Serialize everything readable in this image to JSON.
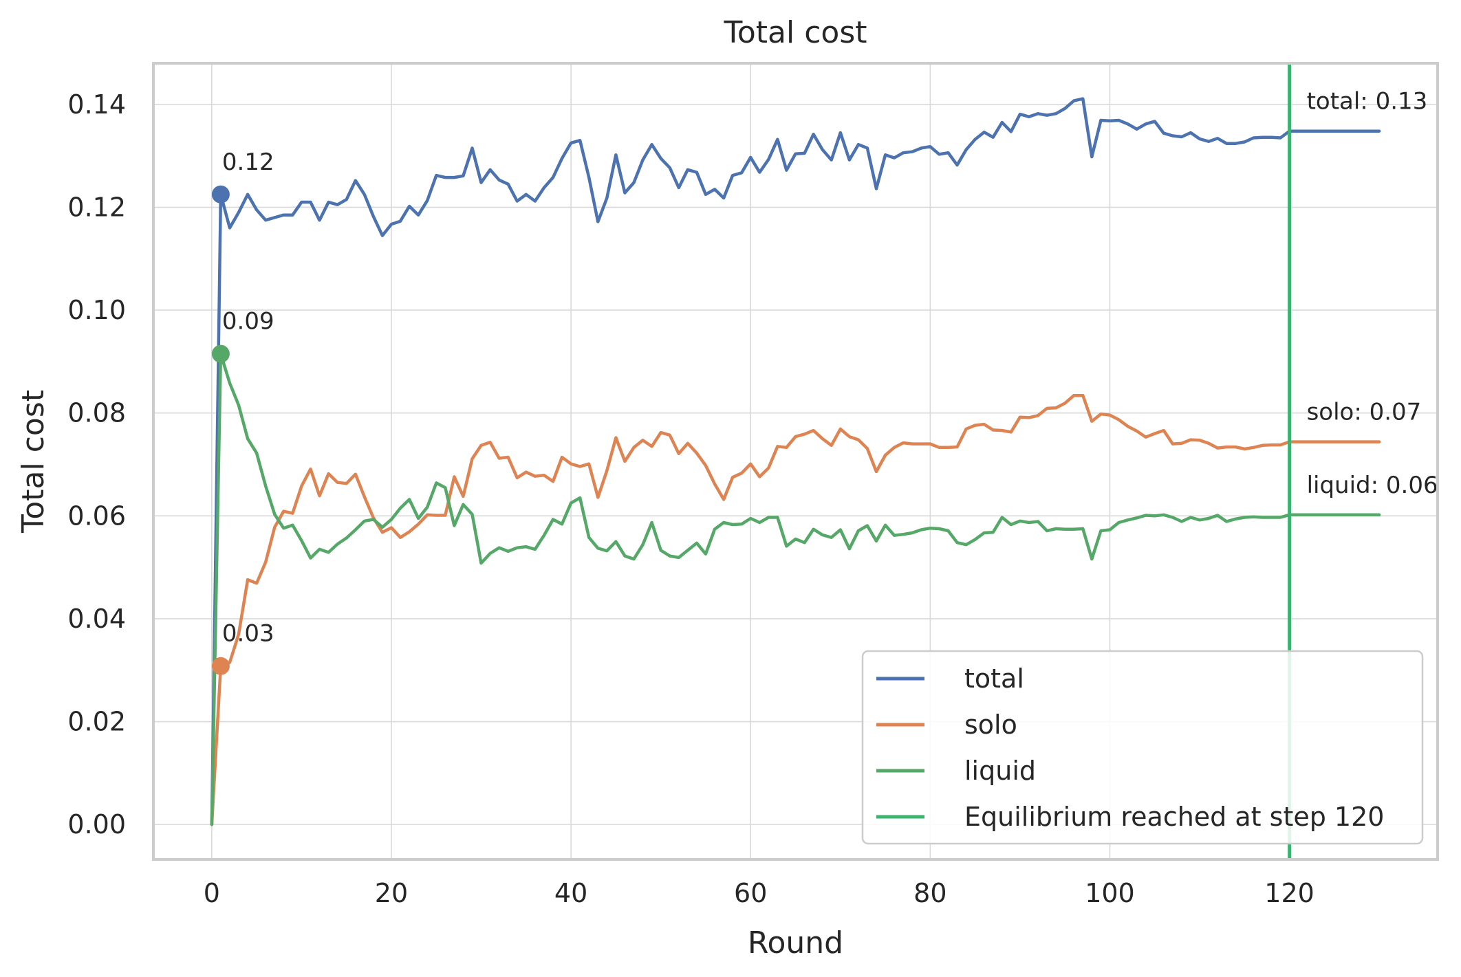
{
  "chart_data": {
    "type": "line",
    "title": "Total cost",
    "xlabel": "Round",
    "ylabel": "Total cost",
    "xlim": [
      -6.5,
      136.5
    ],
    "ylim": [
      -0.0068,
      0.148
    ],
    "xticks": [
      0,
      20,
      40,
      60,
      80,
      100,
      120
    ],
    "xtick_labels": [
      "0",
      "20",
      "40",
      "60",
      "80",
      "100",
      "120"
    ],
    "yticks": [
      0.0,
      0.02,
      0.04,
      0.06,
      0.08,
      0.1,
      0.12,
      0.14
    ],
    "ytick_labels": [
      "0.00",
      "0.02",
      "0.04",
      "0.06",
      "0.08",
      "0.10",
      "0.12",
      "0.14"
    ],
    "grid": true,
    "legend_position": "bottom-right",
    "x": [
      0,
      1,
      2,
      3,
      4,
      5,
      6,
      7,
      8,
      9,
      10,
      11,
      12,
      13,
      14,
      15,
      16,
      17,
      18,
      19,
      20,
      21,
      22,
      23,
      24,
      25,
      26,
      27,
      28,
      29,
      30,
      31,
      32,
      33,
      34,
      35,
      36,
      37,
      38,
      39,
      40,
      41,
      42,
      43,
      44,
      45,
      46,
      47,
      48,
      49,
      50,
      51,
      52,
      53,
      54,
      55,
      56,
      57,
      58,
      59,
      60,
      61,
      62,
      63,
      64,
      65,
      66,
      67,
      68,
      69,
      70,
      71,
      72,
      73,
      74,
      75,
      76,
      77,
      78,
      79,
      80,
      81,
      82,
      83,
      84,
      85,
      86,
      87,
      88,
      89,
      90,
      91,
      92,
      93,
      94,
      95,
      96,
      97,
      98,
      99,
      100,
      101,
      102,
      103,
      104,
      105,
      106,
      107,
      108,
      109,
      110,
      111,
      112,
      113,
      114,
      115,
      116,
      117,
      118,
      119,
      120,
      121,
      122,
      123,
      124,
      125,
      126,
      127,
      128,
      129,
      130
    ],
    "series": [
      {
        "name": "total",
        "color": "#4c72b0",
        "values": [
          0.0,
          0.1225,
          0.116,
          0.119,
          0.1225,
          0.1195,
          0.1175,
          0.118,
          0.1185,
          0.1185,
          0.121,
          0.121,
          0.1175,
          0.121,
          0.1205,
          0.1215,
          0.1252,
          0.1225,
          0.1182,
          0.1145,
          0.1167,
          0.1173,
          0.1202,
          0.1185,
          0.1213,
          0.1262,
          0.1258,
          0.1258,
          0.1261,
          0.1315,
          0.1248,
          0.1273,
          0.1253,
          0.1245,
          0.1212,
          0.1225,
          0.1212,
          0.1238,
          0.1258,
          0.1295,
          0.1325,
          0.133,
          0.1258,
          0.1172,
          0.1218,
          0.1302,
          0.1228,
          0.1248,
          0.1292,
          0.1322,
          0.1295,
          0.1277,
          0.1238,
          0.1273,
          0.1268,
          0.1225,
          0.1235,
          0.1218,
          0.1262,
          0.1267,
          0.1297,
          0.1268,
          0.1293,
          0.1332,
          0.1272,
          0.1304,
          0.1305,
          0.1342,
          0.1312,
          0.1292,
          0.1345,
          0.1292,
          0.1322,
          0.1315,
          0.1236,
          0.1302,
          0.1296,
          0.1306,
          0.1308,
          0.1315,
          0.1318,
          0.1303,
          0.1306,
          0.1282,
          0.1312,
          0.1332,
          0.1346,
          0.1336,
          0.1365,
          0.1347,
          0.1381,
          0.1376,
          0.1382,
          0.1379,
          0.1382,
          0.1392,
          0.1407,
          0.1411,
          0.1298,
          0.1369,
          0.1368,
          0.1369,
          0.1362,
          0.1352,
          0.1362,
          0.1367,
          0.1344,
          0.1339,
          0.1337,
          0.1345,
          0.1333,
          0.1328,
          0.1334,
          0.1324,
          0.1324,
          0.1327,
          0.1335,
          0.1336,
          0.1336,
          0.1335,
          0.1348,
          0.1348,
          0.1348,
          0.1348,
          0.1348,
          0.1348,
          0.1348,
          0.1348,
          0.1348,
          0.1348,
          0.1348
        ]
      },
      {
        "name": "solo",
        "color": "#dd8452",
        "values": [
          0.0,
          0.0308,
          0.0315,
          0.037,
          0.0476,
          0.0469,
          0.051,
          0.0578,
          0.0609,
          0.0605,
          0.0658,
          0.0691,
          0.0639,
          0.0682,
          0.0665,
          0.0663,
          0.0681,
          0.0637,
          0.0596,
          0.0568,
          0.0577,
          0.0558,
          0.0569,
          0.0584,
          0.0602,
          0.0601,
          0.0601,
          0.0676,
          0.0638,
          0.0711,
          0.0737,
          0.0743,
          0.0712,
          0.0714,
          0.0674,
          0.0685,
          0.0677,
          0.0679,
          0.0667,
          0.0714,
          0.0701,
          0.0696,
          0.0701,
          0.0636,
          0.0688,
          0.0752,
          0.0706,
          0.0733,
          0.0747,
          0.0735,
          0.0762,
          0.0757,
          0.0721,
          0.0741,
          0.0722,
          0.0698,
          0.0662,
          0.0632,
          0.0675,
          0.0683,
          0.0701,
          0.0676,
          0.0693,
          0.0735,
          0.0733,
          0.0754,
          0.0759,
          0.0766,
          0.075,
          0.0737,
          0.0769,
          0.0754,
          0.0748,
          0.0731,
          0.0686,
          0.0718,
          0.0733,
          0.0742,
          0.074,
          0.074,
          0.074,
          0.0733,
          0.0733,
          0.0734,
          0.0769,
          0.0776,
          0.0778,
          0.0767,
          0.0766,
          0.0763,
          0.0792,
          0.0791,
          0.0795,
          0.0809,
          0.081,
          0.0819,
          0.0834,
          0.0834,
          0.0784,
          0.0798,
          0.0796,
          0.0787,
          0.0774,
          0.0765,
          0.0753,
          0.076,
          0.0766,
          0.074,
          0.0741,
          0.0748,
          0.0747,
          0.0741,
          0.0732,
          0.0734,
          0.0734,
          0.073,
          0.0733,
          0.0737,
          0.0738,
          0.0738,
          0.0744,
          0.0744,
          0.0744,
          0.0744,
          0.0744,
          0.0744,
          0.0744,
          0.0744,
          0.0744,
          0.0744,
          0.0744
        ]
      },
      {
        "name": "liquid",
        "color": "#55a868",
        "values": [
          0.0,
          0.0915,
          0.0858,
          0.0815,
          0.075,
          0.0722,
          0.0658,
          0.0603,
          0.0576,
          0.0582,
          0.0552,
          0.0518,
          0.0535,
          0.0529,
          0.0545,
          0.0557,
          0.0573,
          0.059,
          0.0593,
          0.0578,
          0.0593,
          0.0615,
          0.0632,
          0.0595,
          0.0617,
          0.0664,
          0.0655,
          0.0581,
          0.0622,
          0.0603,
          0.0508,
          0.0527,
          0.0538,
          0.0531,
          0.0538,
          0.054,
          0.0535,
          0.0562,
          0.0593,
          0.0584,
          0.0625,
          0.0635,
          0.0558,
          0.0537,
          0.0532,
          0.055,
          0.0522,
          0.0516,
          0.0544,
          0.0587,
          0.0533,
          0.0522,
          0.0519,
          0.0533,
          0.0547,
          0.0526,
          0.0574,
          0.0587,
          0.0583,
          0.0584,
          0.0595,
          0.0587,
          0.0597,
          0.0597,
          0.0541,
          0.0555,
          0.0548,
          0.0574,
          0.0563,
          0.0558,
          0.0573,
          0.0536,
          0.0571,
          0.0581,
          0.0551,
          0.0582,
          0.0562,
          0.0564,
          0.0567,
          0.0573,
          0.0576,
          0.0575,
          0.0571,
          0.0548,
          0.0544,
          0.0554,
          0.0567,
          0.0568,
          0.0597,
          0.0583,
          0.059,
          0.0587,
          0.0589,
          0.0571,
          0.0575,
          0.0574,
          0.0574,
          0.0575,
          0.0516,
          0.0571,
          0.0573,
          0.0587,
          0.0592,
          0.0596,
          0.0601,
          0.06,
          0.0602,
          0.0597,
          0.0589,
          0.0597,
          0.0592,
          0.0595,
          0.0601,
          0.0589,
          0.0594,
          0.0597,
          0.0598,
          0.0597,
          0.0597,
          0.0597,
          0.0602,
          0.0602,
          0.0602,
          0.0602,
          0.0602,
          0.0602,
          0.0602,
          0.0602,
          0.0602,
          0.0602,
          0.0602
        ]
      }
    ],
    "start_markers": [
      {
        "series": "total",
        "x": 1,
        "y": 0.1225,
        "label": "0.12"
      },
      {
        "series": "liquid",
        "x": 1,
        "y": 0.0915,
        "label": "0.09"
      },
      {
        "series": "solo",
        "x": 1,
        "y": 0.0308,
        "label": "0.03"
      }
    ],
    "end_annotations": [
      {
        "series": "total",
        "y": 0.1348,
        "label": "total: 0.13"
      },
      {
        "series": "solo",
        "y": 0.0744,
        "label": "solo: 0.07"
      },
      {
        "series": "liquid",
        "y": 0.0602,
        "label": "liquid: 0.06"
      }
    ],
    "equilibrium_line": {
      "x": 120,
      "color": "#3cb371",
      "label": "Equilibrium reached at step 120"
    },
    "legend": [
      {
        "label": "total",
        "color": "#4c72b0"
      },
      {
        "label": "solo",
        "color": "#dd8452"
      },
      {
        "label": "liquid",
        "color": "#55a868"
      },
      {
        "label": "Equilibrium reached at step 120",
        "color": "#3cb371"
      }
    ],
    "colors": {
      "grid": "#d9d9d9",
      "frame": "#cccccc",
      "text": "#262626"
    }
  }
}
